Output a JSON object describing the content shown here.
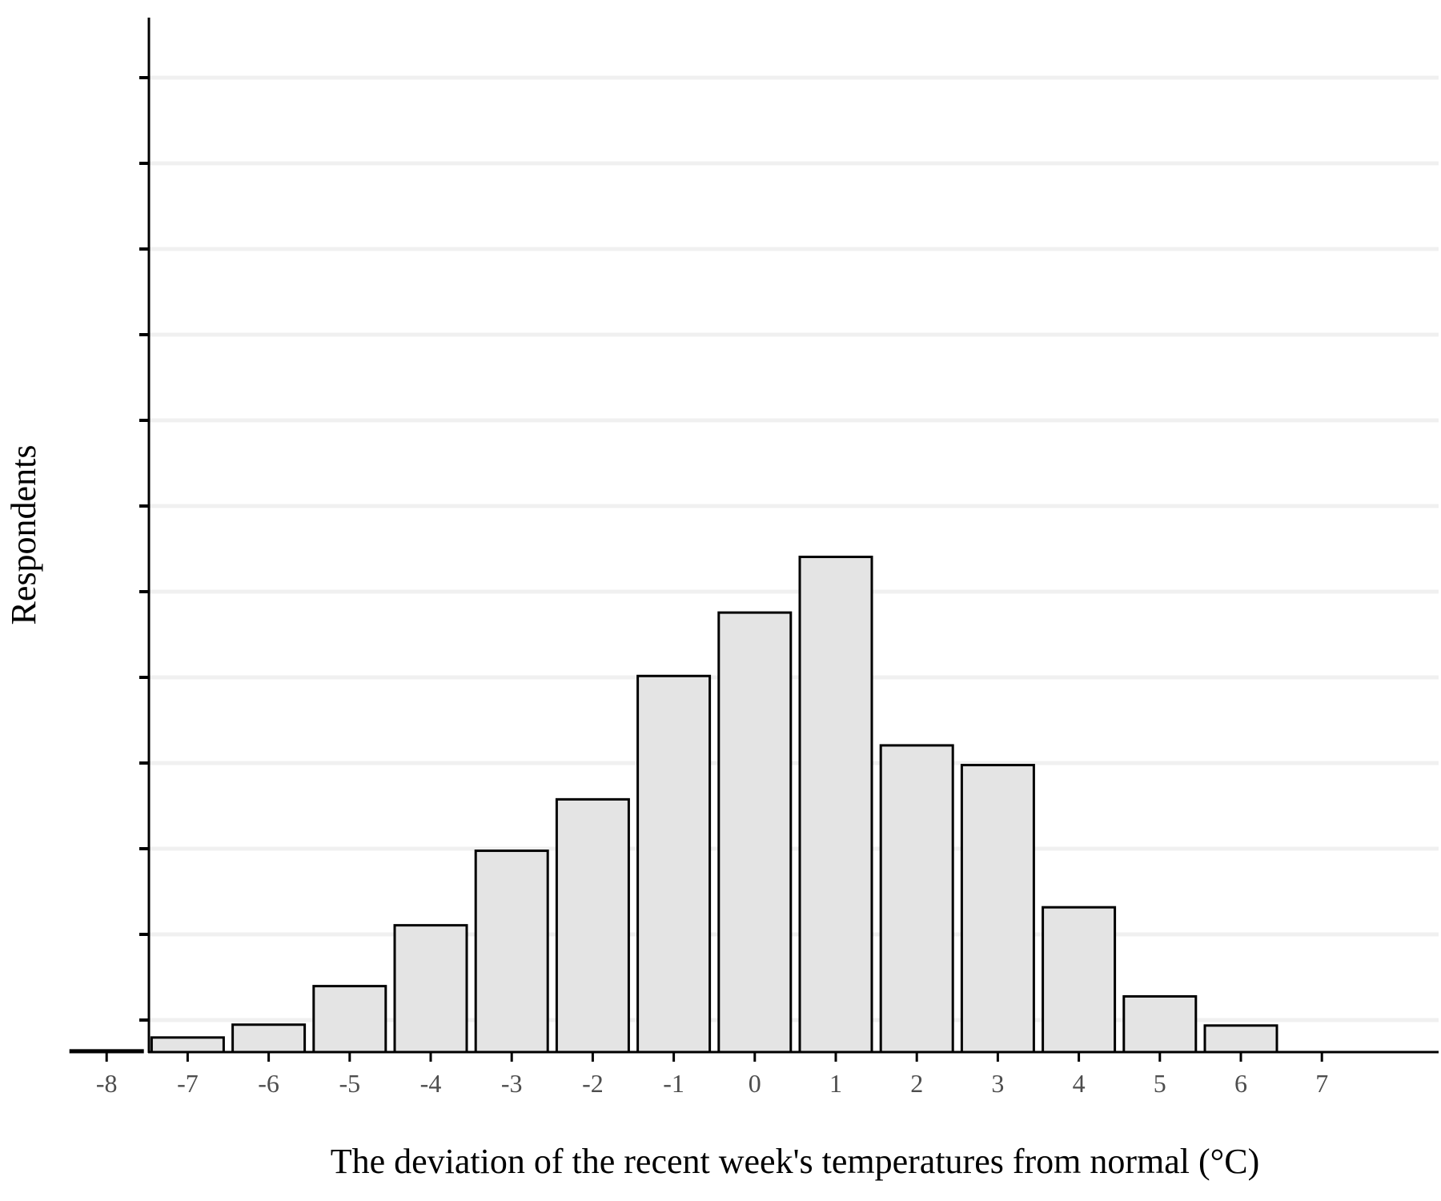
{
  "chart_data": {
    "type": "bar",
    "title": "",
    "xlabel": "The deviation of the recent week's temperatures from normal (°C)",
    "ylabel": "Respondents",
    "x_ticks": [
      "-8",
      "-7",
      "-6",
      "-5",
      "-4",
      "-3",
      "-2",
      "-1",
      "0",
      "1",
      "2",
      "3",
      "4",
      "5",
      "6",
      "7"
    ],
    "categories": [
      -8,
      -7,
      -6,
      -5,
      -4,
      -3,
      -2,
      -1,
      0,
      1,
      2,
      3,
      4,
      5,
      6
    ],
    "values": [
      0.2,
      1.7,
      3.2,
      7.7,
      14.8,
      23.5,
      29.5,
      43.9,
      51.3,
      57.8,
      35.8,
      33.5,
      16.9,
      6.5,
      3.1
    ],
    "y_gridline_count": 12,
    "y_tick_labels_shown": false,
    "grid": "horizontal",
    "legend": "none",
    "colors": {
      "bar_fill": "#e4e4e4",
      "bar_stroke": "#000000",
      "grid": "#f0f0f0",
      "axis": "#000000"
    }
  }
}
